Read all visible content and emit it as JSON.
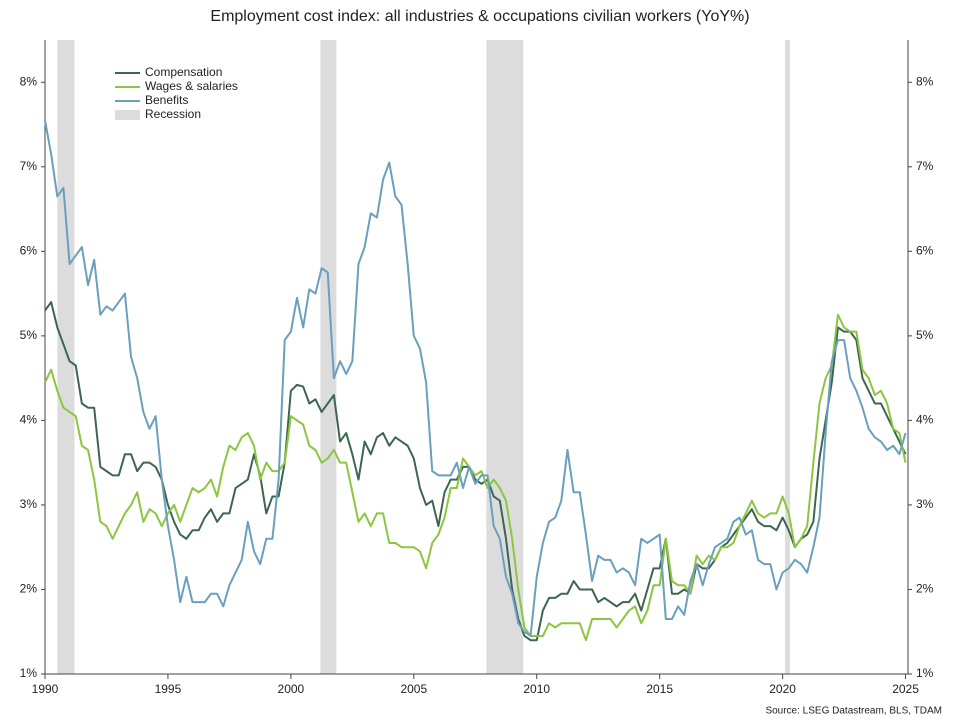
{
  "chart_data": {
    "type": "line",
    "title": "Employment cost index: all industries & occupations civilian workers  (YoY%)",
    "source": "Source: LSEG Datastream, BLS, TDAM",
    "x": [
      1990,
      1990.25,
      1990.5,
      1990.75,
      1991,
      1991.25,
      1991.5,
      1991.75,
      1992,
      1992.25,
      1992.5,
      1992.75,
      1993,
      1993.25,
      1993.5,
      1993.75,
      1994,
      1994.25,
      1994.5,
      1994.75,
      1995,
      1995.25,
      1995.5,
      1995.75,
      1996,
      1996.25,
      1996.5,
      1996.75,
      1997,
      1997.25,
      1997.5,
      1997.75,
      1998,
      1998.25,
      1998.5,
      1998.75,
      1999,
      1999.25,
      1999.5,
      1999.75,
      2000,
      2000.25,
      2000.5,
      2000.75,
      2001,
      2001.25,
      2001.5,
      2001.75,
      2002,
      2002.25,
      2002.5,
      2002.75,
      2003,
      2003.25,
      2003.5,
      2003.75,
      2004,
      2004.25,
      2004.5,
      2004.75,
      2005,
      2005.25,
      2005.5,
      2005.75,
      2006,
      2006.25,
      2006.5,
      2006.75,
      2007,
      2007.25,
      2007.5,
      2007.75,
      2008,
      2008.25,
      2008.5,
      2008.75,
      2009,
      2009.25,
      2009.5,
      2009.75,
      2010,
      2010.25,
      2010.5,
      2010.75,
      2011,
      2011.25,
      2011.5,
      2011.75,
      2012,
      2012.25,
      2012.5,
      2012.75,
      2013,
      2013.25,
      2013.5,
      2013.75,
      2014,
      2014.25,
      2014.5,
      2014.75,
      2015,
      2015.25,
      2015.5,
      2015.75,
      2016,
      2016.25,
      2016.5,
      2016.75,
      2017,
      2017.25,
      2017.5,
      2017.75,
      2018,
      2018.25,
      2018.5,
      2018.75,
      2019,
      2019.25,
      2019.5,
      2019.75,
      2020,
      2020.25,
      2020.5,
      2020.75,
      2021,
      2021.25,
      2021.5,
      2021.75,
      2022,
      2022.25,
      2022.5,
      2022.75,
      2023,
      2023.25,
      2023.5,
      2023.75,
      2024,
      2024.25,
      2024.5,
      2024.75,
      2025
    ],
    "series": [
      {
        "name": "Compensation",
        "color": "#3d6650",
        "values": [
          5.3,
          5.4,
          5.1,
          4.9,
          4.7,
          4.65,
          4.2,
          4.15,
          4.15,
          3.45,
          3.4,
          3.35,
          3.35,
          3.6,
          3.6,
          3.4,
          3.5,
          3.5,
          3.45,
          3.3,
          3.0,
          2.8,
          2.65,
          2.6,
          2.7,
          2.7,
          2.85,
          2.95,
          2.8,
          2.9,
          2.9,
          3.2,
          3.25,
          3.3,
          3.6,
          3.35,
          2.9,
          3.1,
          3.1,
          3.5,
          4.35,
          4.42,
          4.4,
          4.2,
          4.25,
          4.1,
          4.2,
          4.3,
          3.75,
          3.85,
          3.6,
          3.3,
          3.75,
          3.6,
          3.8,
          3.85,
          3.7,
          3.8,
          3.75,
          3.7,
          3.55,
          3.2,
          3.0,
          3.05,
          2.75,
          3.15,
          3.3,
          3.3,
          3.45,
          3.45,
          3.3,
          3.25,
          3.3,
          3.1,
          3.05,
          2.6,
          2.0,
          1.65,
          1.45,
          1.4,
          1.4,
          1.75,
          1.9,
          1.9,
          1.95,
          1.95,
          2.1,
          2.0,
          2.0,
          2.0,
          1.85,
          1.9,
          1.85,
          1.8,
          1.85,
          1.85,
          1.95,
          1.75,
          2.0,
          2.25,
          2.25,
          2.6,
          1.95,
          1.95,
          2.0,
          1.95,
          2.3,
          2.25,
          2.25,
          2.35,
          2.5,
          2.55,
          2.65,
          2.75,
          2.85,
          2.95,
          2.8,
          2.75,
          2.75,
          2.7,
          2.85,
          2.7,
          2.5,
          2.6,
          2.65,
          2.8,
          3.55,
          4.0,
          4.45,
          5.1,
          5.05,
          5.05,
          4.95,
          4.5,
          4.35,
          4.2,
          4.2,
          4.05,
          3.9,
          3.75,
          3.6
        ]
      },
      {
        "name": "Wages & salaries",
        "color": "#8cc63f",
        "values": [
          4.45,
          4.6,
          4.35,
          4.15,
          4.1,
          4.05,
          3.7,
          3.65,
          3.3,
          2.8,
          2.75,
          2.6,
          2.75,
          2.9,
          3.0,
          3.15,
          2.8,
          2.95,
          2.9,
          2.75,
          2.9,
          3.0,
          2.8,
          3.0,
          3.2,
          3.15,
          3.2,
          3.3,
          3.1,
          3.45,
          3.7,
          3.65,
          3.8,
          3.85,
          3.7,
          3.3,
          3.5,
          3.4,
          3.4,
          3.5,
          4.05,
          4.0,
          3.95,
          3.7,
          3.65,
          3.5,
          3.55,
          3.65,
          3.5,
          3.5,
          3.15,
          2.8,
          2.9,
          2.75,
          2.9,
          2.9,
          2.55,
          2.55,
          2.5,
          2.5,
          2.5,
          2.45,
          2.25,
          2.55,
          2.65,
          2.85,
          3.2,
          3.2,
          3.55,
          3.45,
          3.35,
          3.4,
          3.2,
          3.3,
          3.2,
          3.05,
          2.6,
          2.0,
          1.55,
          1.45,
          1.45,
          1.45,
          1.6,
          1.55,
          1.6,
          1.6,
          1.6,
          1.6,
          1.4,
          1.65,
          1.65,
          1.65,
          1.65,
          1.55,
          1.65,
          1.75,
          1.8,
          1.6,
          1.75,
          2.05,
          2.05,
          2.6,
          2.1,
          2.05,
          2.05,
          1.95,
          2.4,
          2.3,
          2.4,
          2.35,
          2.5,
          2.5,
          2.55,
          2.75,
          2.9,
          3.05,
          2.9,
          2.85,
          2.9,
          2.9,
          3.1,
          2.9,
          2.5,
          2.6,
          2.75,
          3.5,
          4.2,
          4.5,
          4.65,
          5.25,
          5.1,
          5.05,
          5.05,
          4.6,
          4.5,
          4.3,
          4.35,
          4.2,
          3.9,
          3.85,
          3.5
        ]
      },
      {
        "name": "Benefits",
        "color": "#6a9fbd",
        "values": [
          7.55,
          7.15,
          6.65,
          6.75,
          5.85,
          5.95,
          6.05,
          5.6,
          5.9,
          5.25,
          5.35,
          5.3,
          5.4,
          5.5,
          4.75,
          4.5,
          4.1,
          3.9,
          4.05,
          3.3,
          2.75,
          2.35,
          1.85,
          2.15,
          1.85,
          1.85,
          1.85,
          1.95,
          1.95,
          1.8,
          2.05,
          2.2,
          2.35,
          2.8,
          2.45,
          2.3,
          2.6,
          2.6,
          3.3,
          4.95,
          5.05,
          5.45,
          5.1,
          5.55,
          5.5,
          5.8,
          5.75,
          4.5,
          4.7,
          4.55,
          4.7,
          5.85,
          6.05,
          6.45,
          6.4,
          6.85,
          7.05,
          6.65,
          6.55,
          5.85,
          5.0,
          4.85,
          4.45,
          3.4,
          3.35,
          3.35,
          3.35,
          3.5,
          3.2,
          3.45,
          3.25,
          3.35,
          3.35,
          2.75,
          2.6,
          2.15,
          1.95,
          1.6,
          1.5,
          1.45,
          2.15,
          2.55,
          2.8,
          2.85,
          3.05,
          3.65,
          3.15,
          3.15,
          2.65,
          2.1,
          2.4,
          2.35,
          2.35,
          2.2,
          2.25,
          2.2,
          2.05,
          2.6,
          2.55,
          2.6,
          2.65,
          1.65,
          1.65,
          1.8,
          1.7,
          2.1,
          2.3,
          2.05,
          2.3,
          2.5,
          2.55,
          2.6,
          2.8,
          2.85,
          2.65,
          2.7,
          2.35,
          2.3,
          2.3,
          2.0,
          2.2,
          2.25,
          2.35,
          2.3,
          2.2,
          2.5,
          2.85,
          3.85,
          4.7,
          4.95,
          4.95,
          4.5,
          4.35,
          4.15,
          3.9,
          3.8,
          3.75,
          3.65,
          3.7,
          3.6,
          3.85
        ]
      }
    ],
    "recession": {
      "name": "Recession",
      "color": "#dcdcdc",
      "periods": [
        [
          1990.5,
          1991.2
        ],
        [
          2001.2,
          2001.85
        ],
        [
          2007.95,
          2009.45
        ],
        [
          2020.1,
          2020.3
        ]
      ]
    },
    "xlim": [
      1990,
      2025.1
    ],
    "xticks": [
      1990,
      1995,
      2000,
      2005,
      2010,
      2015,
      2020,
      2025
    ],
    "ylim": [
      1,
      8.5
    ],
    "yticks": [
      {
        "value": 1,
        "label": "1%"
      },
      {
        "value": 2,
        "label": "2%"
      },
      {
        "value": 3,
        "label": "3%"
      },
      {
        "value": 4,
        "label": "4%"
      },
      {
        "value": 5,
        "label": "5%"
      },
      {
        "value": 6,
        "label": "6%"
      },
      {
        "value": 7,
        "label": "7%"
      },
      {
        "value": 8,
        "label": "8%"
      }
    ]
  }
}
